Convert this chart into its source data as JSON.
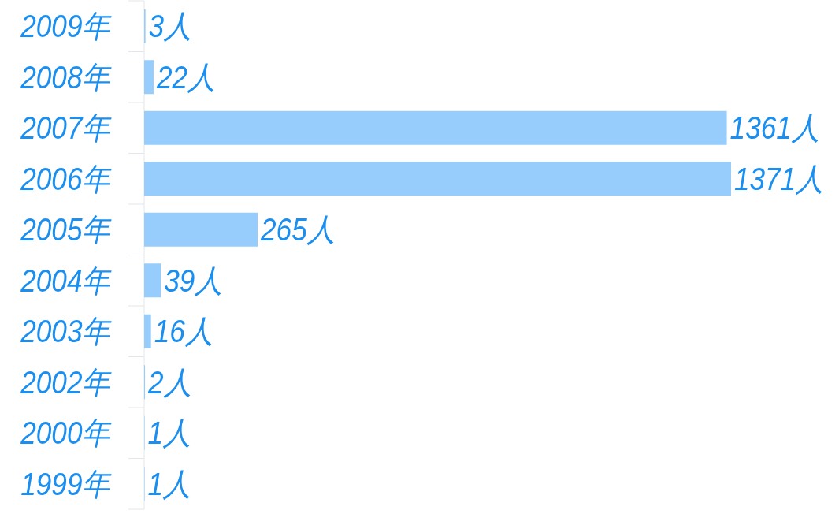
{
  "chart_data": {
    "type": "bar",
    "orientation": "horizontal",
    "categories": [
      "2009年",
      "2008年",
      "2007年",
      "2006年",
      "2005年",
      "2004年",
      "2003年",
      "2002年",
      "2000年",
      "1999年"
    ],
    "values": [
      3,
      22,
      1361,
      1371,
      265,
      39,
      16,
      2,
      1,
      1
    ],
    "value_labels": [
      "3人",
      "22人",
      "1361人",
      "1371人",
      "265人",
      "39人",
      "16人",
      "2人",
      "1人",
      "1人"
    ],
    "color": "#96cdfd"
  }
}
